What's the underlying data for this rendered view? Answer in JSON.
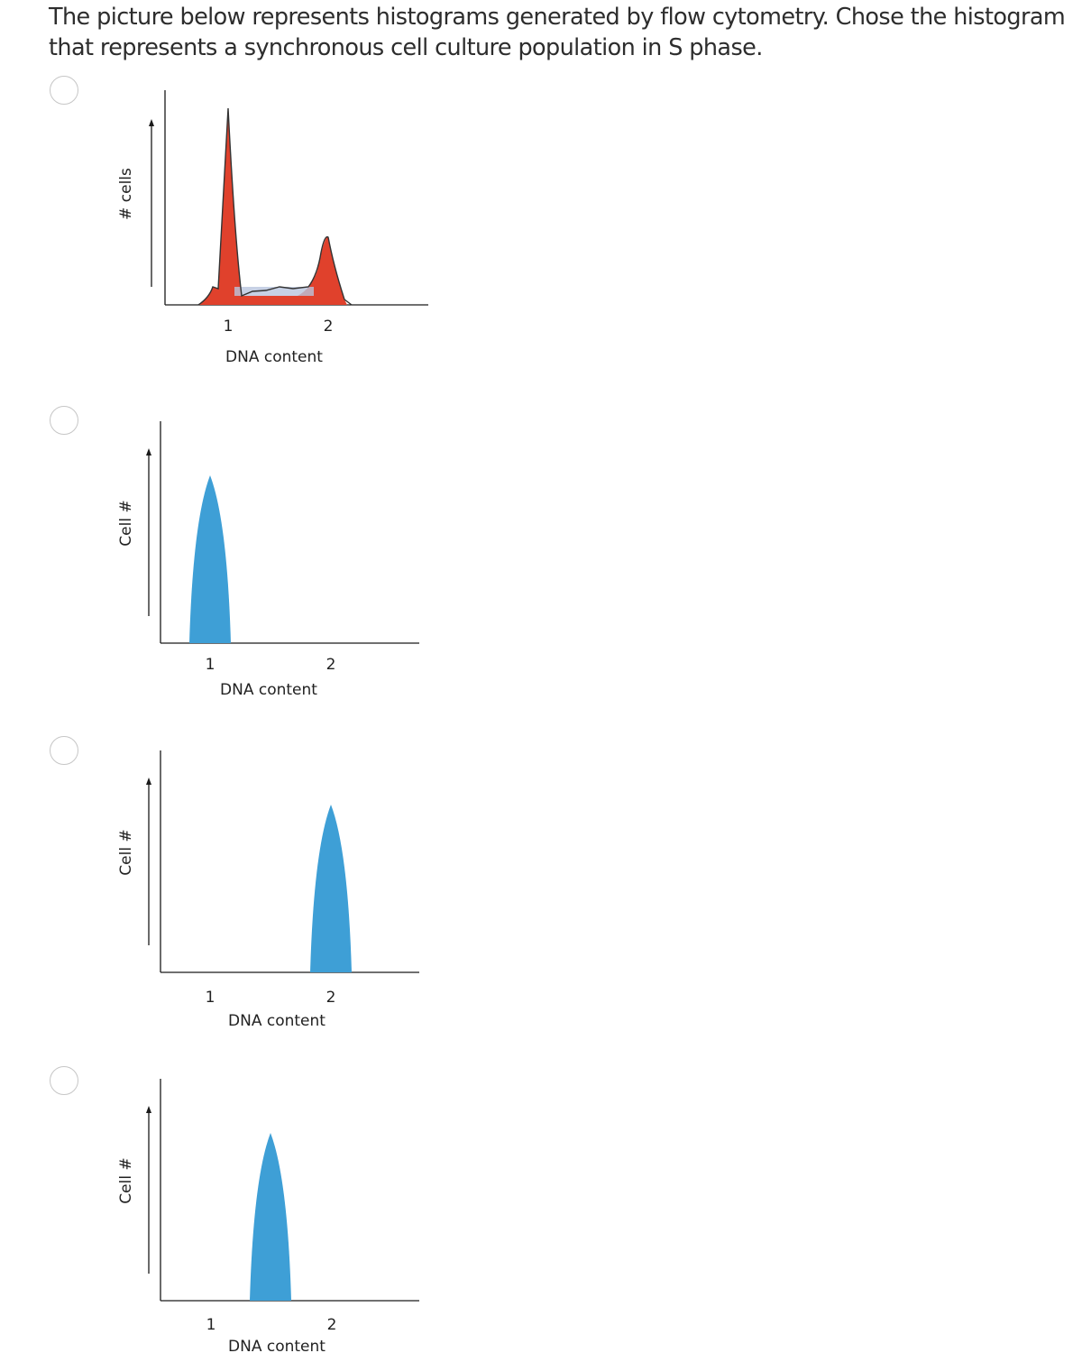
{
  "question": {
    "text": "The picture below represents histograms generated by flow cytometry. Chose the histogram that represents a synchronous cell culture population in S phase."
  },
  "colors": {
    "red_fill": "#e0412c",
    "blue_fill": "#3e9fd6",
    "axis": "#1a1a1a"
  },
  "options": [
    {
      "ylabel": "# cells",
      "xlabel": "DNA content",
      "tick1": "1",
      "tick2": "2",
      "style": "red-mixed",
      "peak_x": null
    },
    {
      "ylabel": "Cell #",
      "xlabel": "DNA content",
      "tick1": "1",
      "tick2": "2",
      "style": "blue-peak",
      "peak_x": 1.0
    },
    {
      "ylabel": "Cell #",
      "xlabel": "DNA content",
      "tick1": "1",
      "tick2": "2",
      "style": "blue-peak",
      "peak_x": 2.0
    },
    {
      "ylabel": "Cell #",
      "xlabel": "DNA content",
      "tick1": "1",
      "tick2": "2",
      "style": "blue-peak",
      "peak_x": 1.5
    }
  ]
}
